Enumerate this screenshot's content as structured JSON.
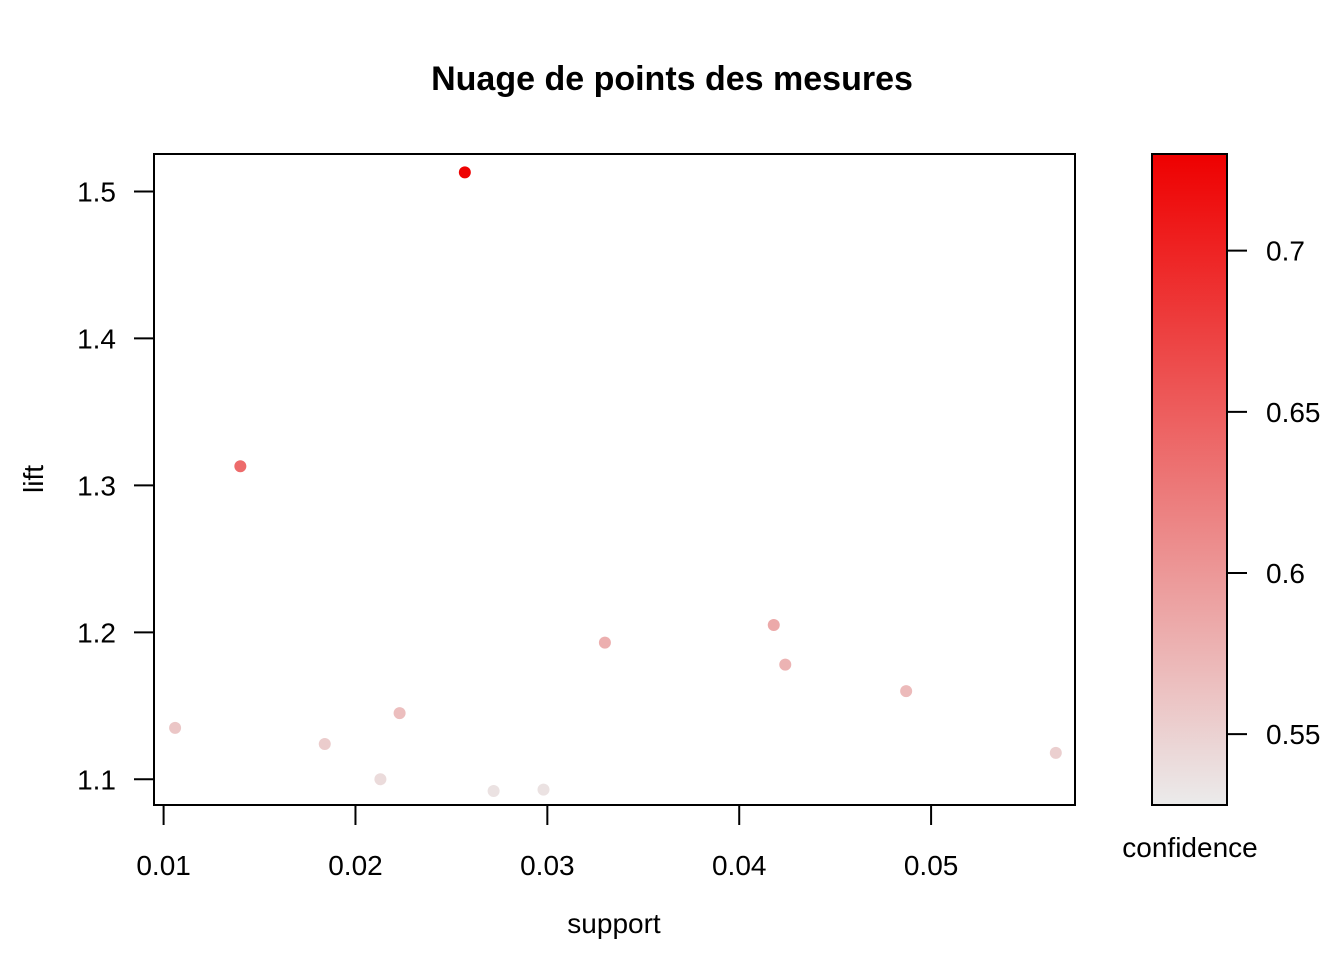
{
  "chart_data": {
    "type": "scatter",
    "title": "Nuage de points des  mesures",
    "xlabel": "support",
    "ylabel": "lift",
    "xlim": [
      0.0095,
      0.0575
    ],
    "ylim": [
      1.0825,
      1.5255
    ],
    "xticks": [
      0.01,
      0.02,
      0.03,
      0.04,
      0.05
    ],
    "xtick_labels": [
      "0.01",
      "0.02",
      "0.03",
      "0.04",
      "0.05"
    ],
    "yticks": [
      1.1,
      1.2,
      1.3,
      1.4,
      1.5
    ],
    "ytick_labels": [
      "1.1",
      "1.2",
      "1.3",
      "1.4",
      "1.5"
    ],
    "color_legend": {
      "label": "confidence",
      "range": [
        0.528,
        0.73
      ],
      "ticks": [
        0.55,
        0.6,
        0.65,
        0.7
      ],
      "tick_labels": [
        "0.55",
        "0.6",
        "0.65",
        "0.7"
      ],
      "low_color": "#ebebeb",
      "high_color": "#ee0000"
    },
    "grid": false,
    "points": [
      {
        "x": 0.0257,
        "y": 1.513,
        "confidence": 0.728
      },
      {
        "x": 0.014,
        "y": 1.313,
        "confidence": 0.638
      },
      {
        "x": 0.0106,
        "y": 1.135,
        "confidence": 0.56
      },
      {
        "x": 0.0184,
        "y": 1.124,
        "confidence": 0.555
      },
      {
        "x": 0.0213,
        "y": 1.1,
        "confidence": 0.542
      },
      {
        "x": 0.0223,
        "y": 1.145,
        "confidence": 0.567
      },
      {
        "x": 0.0272,
        "y": 1.092,
        "confidence": 0.536
      },
      {
        "x": 0.0298,
        "y": 1.093,
        "confidence": 0.536
      },
      {
        "x": 0.033,
        "y": 1.193,
        "confidence": 0.58
      },
      {
        "x": 0.0418,
        "y": 1.205,
        "confidence": 0.585
      },
      {
        "x": 0.0424,
        "y": 1.178,
        "confidence": 0.576
      },
      {
        "x": 0.0487,
        "y": 1.16,
        "confidence": 0.57
      },
      {
        "x": 0.0565,
        "y": 1.118,
        "confidence": 0.552
      }
    ]
  }
}
